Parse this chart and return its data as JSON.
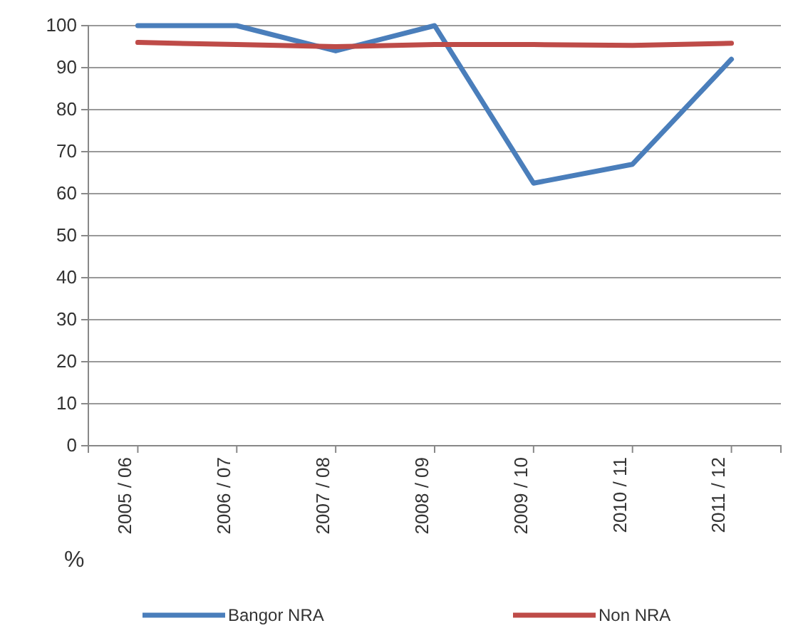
{
  "chart_data": {
    "type": "line",
    "ylabel": "%",
    "categories": [
      "2005 / 06",
      "2006 / 07",
      "2007 / 08",
      "2008 / 09",
      "2009 / 10",
      "2010 / 11",
      "2011 / 12"
    ],
    "series": [
      {
        "name": "Bangor NRA",
        "color": "#4a7ebb",
        "values": [
          100,
          100,
          94,
          100,
          62.5,
          67,
          92
        ]
      },
      {
        "name": "Non NRA",
        "color": "#be4b48",
        "values": [
          96,
          95.5,
          95,
          95.5,
          95.5,
          95.3,
          95.8
        ]
      }
    ],
    "ylim": [
      0,
      100
    ],
    "yticks": [
      0,
      10,
      20,
      30,
      40,
      50,
      60,
      70,
      80,
      90,
      100
    ],
    "grid": "y",
    "legend": "bottom",
    "marker": "none",
    "line_style": "solid"
  }
}
